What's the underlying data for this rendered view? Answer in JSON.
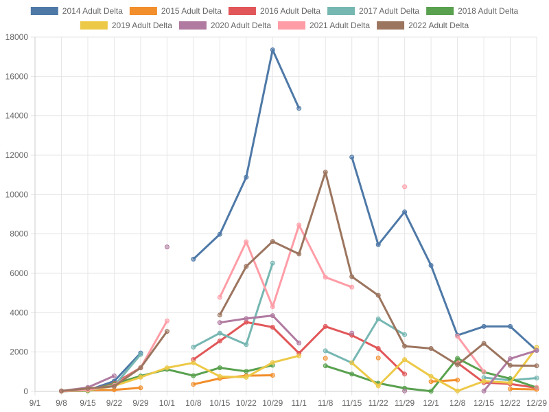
{
  "chart_data": {
    "type": "line",
    "categories": [
      "9/1",
      "9/8",
      "9/15",
      "9/22",
      "9/29",
      "10/1",
      "10/8",
      "10/15",
      "10/22",
      "10/29",
      "11/1",
      "11/8",
      "11/15",
      "11/22",
      "11/29",
      "12/1",
      "12/8",
      "12/15",
      "12/22",
      "12/29"
    ],
    "ylim": [
      0,
      18000
    ],
    "yticks": [
      0,
      2000,
      4000,
      6000,
      8000,
      10000,
      12000,
      14000,
      16000,
      18000
    ],
    "grid": true,
    "legend": "top",
    "series": [
      {
        "name": "2014 Adult Delta",
        "color": "#4e79a7",
        "values": [
          null,
          20,
          50,
          520,
          1950,
          null,
          6720,
          7980,
          10880,
          17350,
          14380,
          null,
          11900,
          7450,
          9120,
          6400,
          2850,
          3300,
          3300,
          2080
        ]
      },
      {
        "name": "2015 Adult Delta",
        "color": "#f28e2b",
        "values": [
          null,
          20,
          60,
          80,
          180,
          null,
          360,
          660,
          800,
          820,
          null,
          1680,
          null,
          1700,
          null,
          500,
          580,
          null,
          130,
          100
        ]
      },
      {
        "name": "2016 Adult Delta",
        "color": "#e15759",
        "values": [
          null,
          10,
          40,
          400,
          1200,
          null,
          1620,
          2560,
          3520,
          3260,
          1940,
          3300,
          2850,
          2180,
          880,
          null,
          1450,
          450,
          380,
          180
        ]
      },
      {
        "name": "2017 Adult Delta",
        "color": "#76b7b2",
        "values": [
          null,
          10,
          50,
          280,
          1880,
          null,
          2250,
          2960,
          2380,
          6520,
          null,
          2060,
          1450,
          3680,
          2880,
          null,
          null,
          700,
          560,
          680
        ]
      },
      {
        "name": "2018 Adult Delta",
        "color": "#59a14f",
        "values": [
          null,
          10,
          30,
          380,
          780,
          1120,
          800,
          1200,
          1020,
          1330,
          null,
          1300,
          880,
          420,
          160,
          10,
          1680,
          980,
          650,
          200
        ]
      },
      {
        "name": "2019 Adult Delta",
        "color": "#edc948",
        "values": [
          null,
          10,
          60,
          280,
          720,
          1200,
          1450,
          760,
          720,
          1470,
          1810,
          null,
          1450,
          280,
          1620,
          760,
          20,
          520,
          440,
          2240
        ]
      },
      {
        "name": "2020 Adult Delta",
        "color": "#b07aa1",
        "values": [
          null,
          20,
          200,
          790,
          null,
          7340,
          null,
          3500,
          3700,
          3850,
          2460,
          null,
          2960,
          null,
          20,
          null,
          null,
          20,
          1660,
          2080
        ]
      },
      {
        "name": "2021 Adult Delta",
        "color": "#ff9da7",
        "values": [
          null,
          10,
          80,
          300,
          1200,
          3580,
          null,
          4780,
          7600,
          4300,
          8450,
          5800,
          5300,
          null,
          10400,
          null,
          2800,
          1000,
          null,
          200
        ]
      },
      {
        "name": "2022 Adult Delta",
        "color": "#9c755f",
        "values": [
          null,
          20,
          150,
          260,
          1200,
          3050,
          null,
          3880,
          6350,
          7620,
          6980,
          11140,
          5830,
          4880,
          2300,
          2180,
          1350,
          2440,
          1320,
          1300
        ]
      }
    ]
  }
}
